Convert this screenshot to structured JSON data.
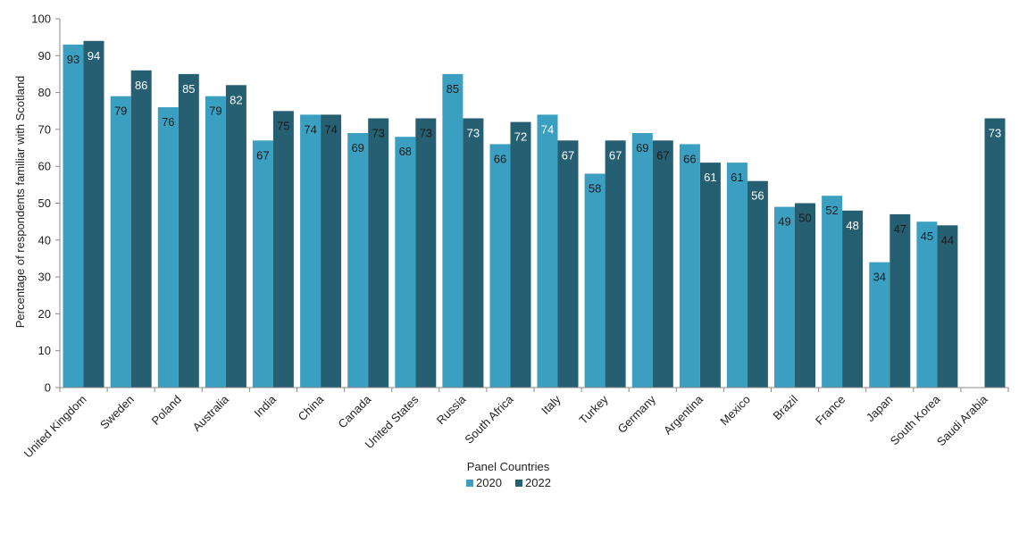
{
  "chart_data": {
    "type": "bar",
    "title": "",
    "xlabel": "Panel Countries",
    "ylabel": "Percentage of respondents familiar with Scotland",
    "ylim": [
      0,
      100
    ],
    "yticks": [
      0,
      10,
      20,
      30,
      40,
      50,
      60,
      70,
      80,
      90,
      100
    ],
    "grid": false,
    "legend_position": "bottom",
    "categories": [
      "United Kingdom",
      "Sweden",
      "Poland",
      "Australia",
      "India",
      "China",
      "Canada",
      "United States",
      "Russia",
      "South Africa",
      "Italy",
      "Turkey",
      "Germany",
      "Argentina",
      "Mexico",
      "Brazil",
      "France",
      "Japan",
      "South Korea",
      "Saudi Arabia"
    ],
    "series": [
      {
        "name": "2020",
        "color": "#3a9fc1",
        "values": [
          93,
          79,
          76,
          79,
          67,
          74,
          69,
          68,
          85,
          66,
          74,
          58,
          69,
          66,
          61,
          49,
          52,
          34,
          45,
          null
        ],
        "label_colors": [
          "#1a1a1a",
          "#1a1a1a",
          "#1a1a1a",
          "#1a1a1a",
          "#1a1a1a",
          "#1a1a1a",
          "#1a1a1a",
          "#1a1a1a",
          "#1a1a1a",
          "#1a1a1a",
          "#ffffff",
          "#1a1a1a",
          "#1a1a1a",
          "#1a1a1a",
          "#1a1a1a",
          "#1a1a1a",
          "#1a1a1a",
          "#1a1a1a",
          "#1a1a1a",
          "#1a1a1a"
        ]
      },
      {
        "name": "2022",
        "color": "#265f72",
        "values": [
          94,
          86,
          85,
          82,
          75,
          74,
          73,
          73,
          73,
          72,
          67,
          67,
          67,
          61,
          56,
          50,
          48,
          47,
          44,
          73
        ],
        "label_colors": [
          "#ffffff",
          "#ffffff",
          "#ffffff",
          "#ffffff",
          "#1a1a1a",
          "#1a1a1a",
          "#1a1a1a",
          "#1a1a1a",
          "#ffffff",
          "#ffffff",
          "#ffffff",
          "#ffffff",
          "#1a1a1a",
          "#ffffff",
          "#ffffff",
          "#1a1a1a",
          "#ffffff",
          "#1a1a1a",
          "#1a1a1a",
          "#ffffff"
        ]
      }
    ]
  }
}
